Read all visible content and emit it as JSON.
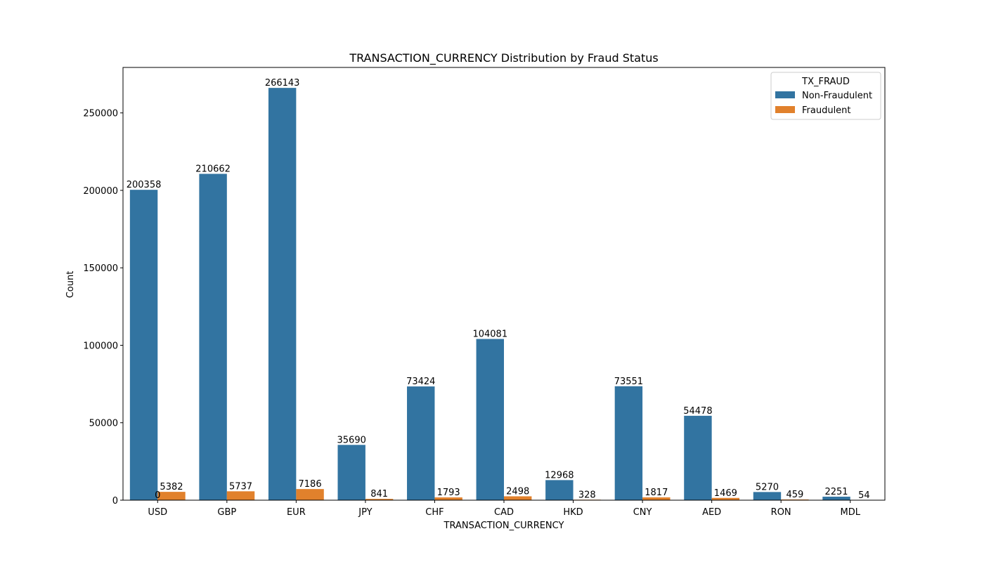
{
  "chart_data": {
    "type": "bar",
    "title": "TRANSACTION_CURRENCY Distribution by Fraud Status",
    "xlabel": "TRANSACTION_CURRENCY",
    "ylabel": "Count",
    "categories": [
      "USD",
      "GBP",
      "EUR",
      "JPY",
      "CHF",
      "CAD",
      "HKD",
      "CNY",
      "AED",
      "RON",
      "MDL"
    ],
    "series": [
      {
        "name": "Non-Fraudulent",
        "color": "#3274a1",
        "values": [
          200358,
          210662,
          266143,
          35690,
          73424,
          104081,
          12968,
          73551,
          54478,
          5270,
          2251
        ]
      },
      {
        "name": "Fraudulent",
        "color": "#e1812c",
        "values": [
          5382,
          5737,
          7186,
          841,
          1793,
          2498,
          328,
          1817,
          1469,
          459,
          54
        ]
      }
    ],
    "stray_labels": [
      {
        "category": "USD",
        "text": "0"
      }
    ],
    "ylim": [
      0,
      279352
    ],
    "yticks": [
      0,
      50000,
      100000,
      150000,
      200000,
      250000
    ],
    "legend": {
      "title": "TX_FRAUD",
      "position": "top-right"
    },
    "grid": false
  }
}
